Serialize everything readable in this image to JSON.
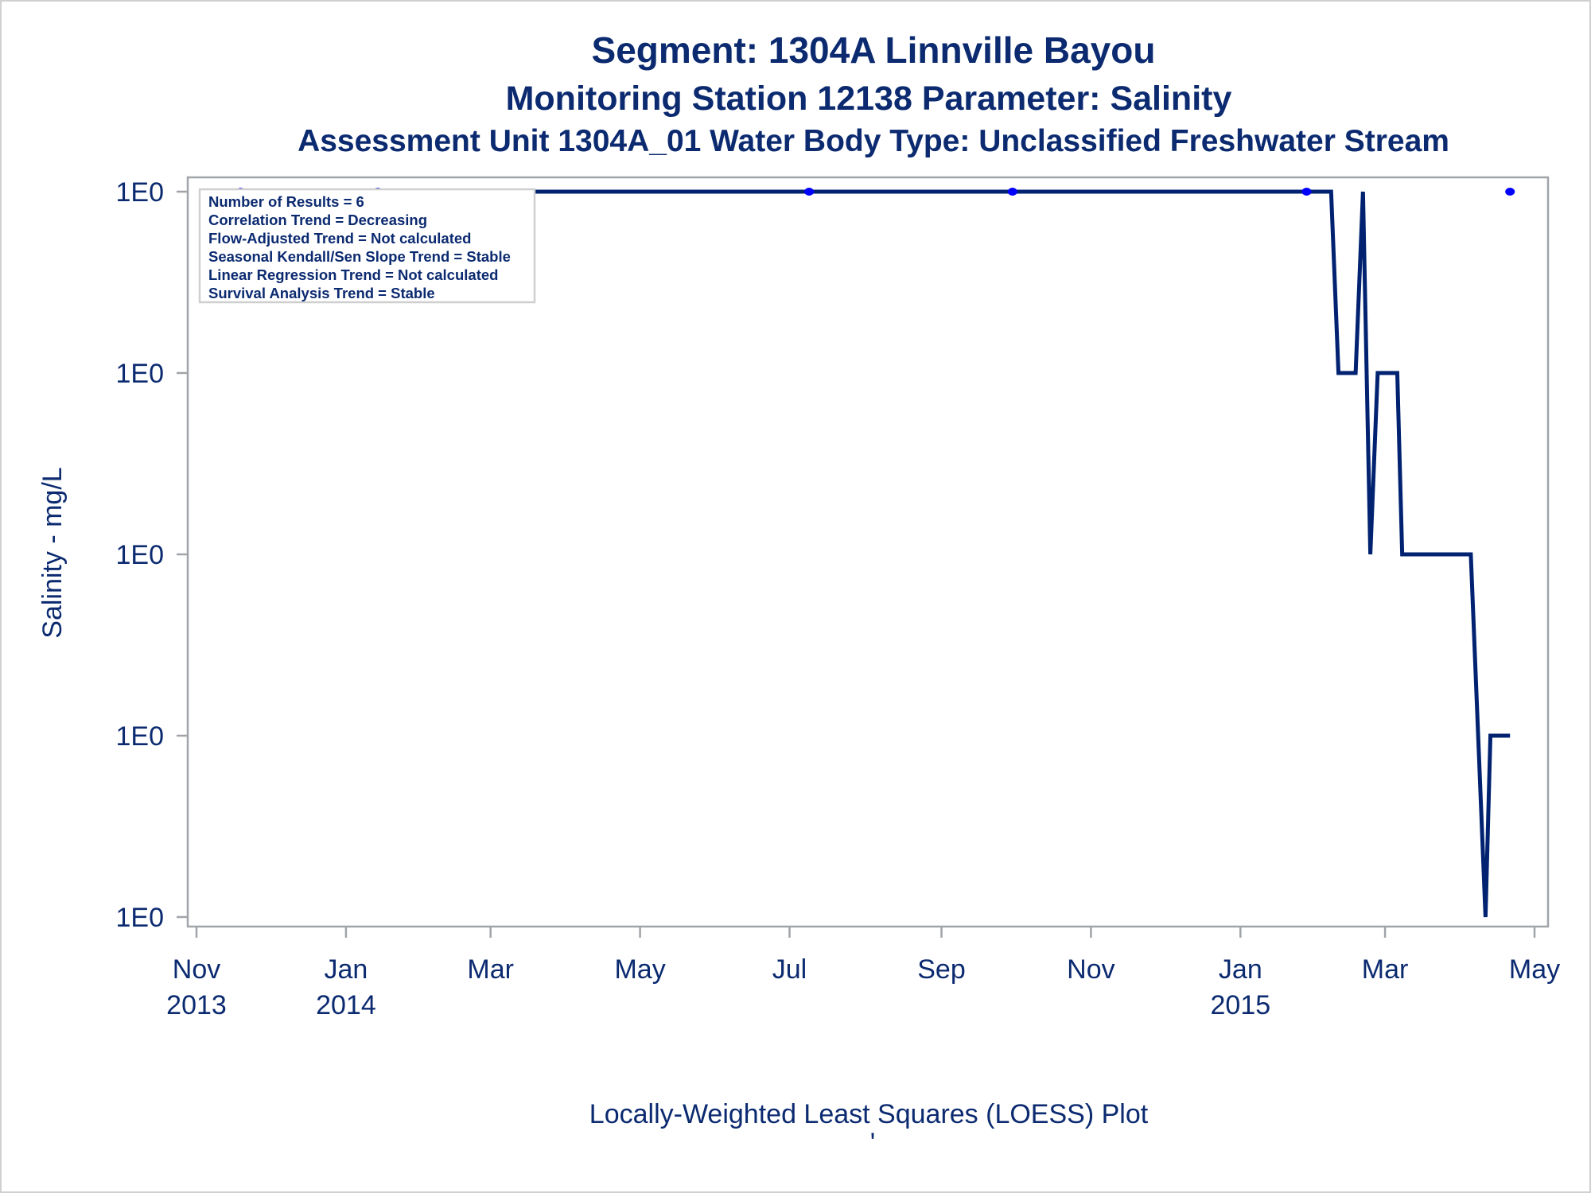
{
  "titles": {
    "line1": "Segment: 1304A  Linnville Bayou",
    "line2": "Monitoring Station 12138 Parameter: Salinity",
    "line3": "Assessment Unit 1304A_01   Water Body Type: Unclassified Freshwater Stream"
  },
  "footer": {
    "caption": "Locally-Weighted Least Squares (LOESS) Plot",
    "mark": "'"
  },
  "colors": {
    "text": "#0b2a70",
    "line": "#002270",
    "points": "#0000ff",
    "frame": "#a0a4a8"
  },
  "chart_data": {
    "type": "line",
    "title": "Segment: 1304A  Linnville Bayou",
    "xlabel": "",
    "ylabel": "Salinity - mg/L",
    "x_range": [
      "2013-11-01",
      "2015-05-01"
    ],
    "x_ticks": [
      {
        "date": "2013-11-01",
        "label": "Nov",
        "year": "2013"
      },
      {
        "date": "2014-01-01",
        "label": "Jan",
        "year": "2014"
      },
      {
        "date": "2014-03-01",
        "label": "Mar",
        "year": ""
      },
      {
        "date": "2014-05-01",
        "label": "May",
        "year": ""
      },
      {
        "date": "2014-07-01",
        "label": "Jul",
        "year": ""
      },
      {
        "date": "2014-09-01",
        "label": "Sep",
        "year": ""
      },
      {
        "date": "2014-11-01",
        "label": "Nov",
        "year": ""
      },
      {
        "date": "2015-01-01",
        "label": "Jan",
        "year": "2015"
      },
      {
        "date": "2015-03-01",
        "label": "Mar",
        "year": ""
      },
      {
        "date": "2015-05-01",
        "label": "May",
        "year": ""
      }
    ],
    "y_ticks": [
      {
        "level": 4,
        "label": "1E0"
      },
      {
        "level": 3,
        "label": "1E0"
      },
      {
        "level": 2,
        "label": "1E0"
      },
      {
        "level": 1,
        "label": "1E0"
      },
      {
        "level": 0,
        "label": "1E0"
      }
    ],
    "ylim": [
      0,
      4
    ],
    "grid": false,
    "series": [
      {
        "name": "Observations",
        "kind": "scatter",
        "points": [
          {
            "date": "2013-11-19",
            "y": 4
          },
          {
            "date": "2014-01-14",
            "y": 4
          },
          {
            "date": "2014-07-09",
            "y": 4
          },
          {
            "date": "2014-09-30",
            "y": 4
          },
          {
            "date": "2015-01-28",
            "y": 4
          },
          {
            "date": "2015-04-21",
            "y": 4
          }
        ]
      },
      {
        "name": "LOESS",
        "kind": "line",
        "points": [
          {
            "date": "2013-11-19",
            "y": 4
          },
          {
            "date": "2015-02-07",
            "y": 4
          },
          {
            "date": "2015-02-10",
            "y": 3
          },
          {
            "date": "2015-02-17",
            "y": 3
          },
          {
            "date": "2015-02-20",
            "y": 4
          },
          {
            "date": "2015-02-23",
            "y": 2
          },
          {
            "date": "2015-02-26",
            "y": 3
          },
          {
            "date": "2015-03-06",
            "y": 3
          },
          {
            "date": "2015-03-08",
            "y": 2
          },
          {
            "date": "2015-04-05",
            "y": 2
          },
          {
            "date": "2015-04-11",
            "y": 0
          },
          {
            "date": "2015-04-13",
            "y": 1
          },
          {
            "date": "2015-04-21",
            "y": 1
          }
        ]
      }
    ],
    "legend": {
      "placement": "top-left",
      "entries": [
        "Number of Results = 6",
        "Correlation Trend = Decreasing",
        "Flow-Adjusted Trend = Not calculated",
        "Seasonal Kendall/Sen Slope Trend = Stable",
        "Linear Regression Trend = Not calculated",
        "Survival Analysis Trend = Stable"
      ]
    }
  }
}
